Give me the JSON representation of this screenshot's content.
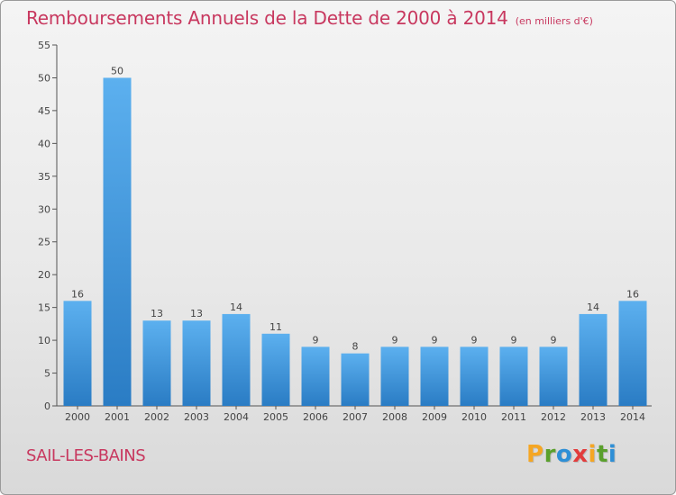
{
  "chart_data": {
    "type": "bar",
    "title": "Remboursements Annuels de la Dette de 2000 à 2014",
    "unit_label": "(en milliers d'€)",
    "categories": [
      "2000",
      "2001",
      "2002",
      "2003",
      "2004",
      "2005",
      "2006",
      "2007",
      "2008",
      "2009",
      "2010",
      "2011",
      "2012",
      "2013",
      "2014"
    ],
    "values": [
      16,
      50,
      13,
      13,
      14,
      11,
      9,
      8,
      9,
      9,
      9,
      9,
      9,
      14,
      16
    ],
    "xlabel": "",
    "ylabel": "",
    "ylim": [
      0,
      55
    ],
    "yticks": [
      0,
      5,
      10,
      15,
      20,
      25,
      30,
      35,
      40,
      45,
      50,
      55
    ],
    "grid": false,
    "bar_color": "#4a9ee0",
    "bar_color_dark": "#2a7cc4"
  },
  "footer": {
    "town": "SAIL-LES-BAINS"
  },
  "logo": {
    "letters": [
      "P",
      "r",
      "o",
      "x",
      "i",
      "t",
      "i"
    ],
    "colors": [
      "#f5a623",
      "#5aa02c",
      "#2e8fd6",
      "#e23c3c",
      "#f5a623",
      "#5aa02c",
      "#2e8fd6"
    ]
  }
}
